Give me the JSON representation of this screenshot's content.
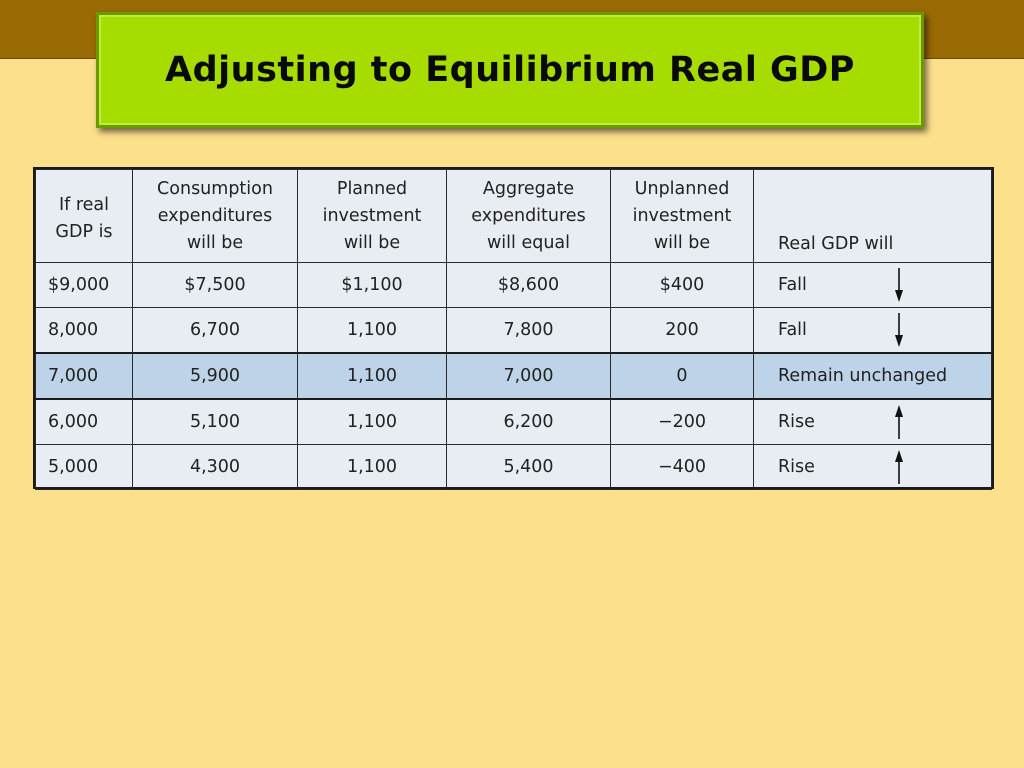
{
  "title": "Adjusting to Equilibrium Real GDP",
  "table": {
    "headers": [
      "If real\nGDP is",
      "Consumption\nexpenditures\nwill be",
      "Planned\ninvestment\nwill be",
      "Aggregate\nexpenditures\nwill equal",
      "Unplanned\ninvestment\nwill be",
      "Real GDP will"
    ],
    "rows": [
      {
        "cells": [
          "$9,000",
          "$7,500",
          "$1,100",
          "$8,600",
          "$400",
          "Fall"
        ],
        "arrow": "down",
        "highlight": false
      },
      {
        "cells": [
          "8,000",
          "6,700",
          "1,100",
          "7,800",
          "200",
          "Fall"
        ],
        "arrow": "down",
        "highlight": false
      },
      {
        "cells": [
          "7,000",
          "5,900",
          "1,100",
          "7,000",
          "0",
          "Remain unchanged"
        ],
        "arrow": "none",
        "highlight": true
      },
      {
        "cells": [
          "6,000",
          "5,100",
          "1,100",
          "6,200",
          "−200",
          "Rise"
        ],
        "arrow": "up",
        "highlight": false
      },
      {
        "cells": [
          "5,000",
          "4,300",
          "1,100",
          "5,400",
          "−400",
          "Rise"
        ],
        "arrow": "up",
        "highlight": false
      }
    ]
  },
  "colors": {
    "background": "#fde08c",
    "top_bar": "#9a6a05",
    "title_box": "#a6dc00",
    "table_bg": "#e8edf3",
    "highlight_row": "#bdd3e7"
  }
}
